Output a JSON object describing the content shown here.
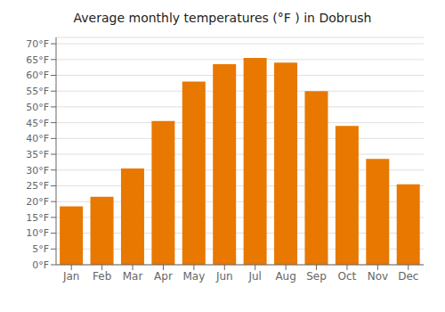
{
  "chart_data": {
    "type": "bar",
    "title": "Average monthly temperatures (°F ) in Dobrush",
    "categories": [
      "Jan",
      "Feb",
      "Mar",
      "Apr",
      "May",
      "Jun",
      "Jul",
      "Aug",
      "Sep",
      "Oct",
      "Nov",
      "Dec"
    ],
    "values": [
      18.5,
      21.5,
      30.5,
      45.5,
      58.0,
      63.5,
      65.5,
      64.0,
      55.0,
      44.0,
      33.5,
      25.5
    ],
    "color": "#E87800",
    "ylim": [
      0,
      72
    ],
    "yticks": [
      {
        "value": 0,
        "label": "0°F"
      },
      {
        "value": 5,
        "label": "5°F"
      },
      {
        "value": 10,
        "label": "10°F"
      },
      {
        "value": 15,
        "label": "15°F"
      },
      {
        "value": 20,
        "label": "20°F"
      },
      {
        "value": 25,
        "label": "25°F"
      },
      {
        "value": 30,
        "label": "30°F"
      },
      {
        "value": 35,
        "label": "35°F"
      },
      {
        "value": 40,
        "label": "40°F"
      },
      {
        "value": 45,
        "label": "45°F"
      },
      {
        "value": 50,
        "label": "50°F"
      },
      {
        "value": 55,
        "label": "55°F"
      },
      {
        "value": 60,
        "label": "60°F"
      },
      {
        "value": 65,
        "label": "65°F"
      },
      {
        "value": 70,
        "label": "70°F"
      }
    ],
    "grid": true
  }
}
